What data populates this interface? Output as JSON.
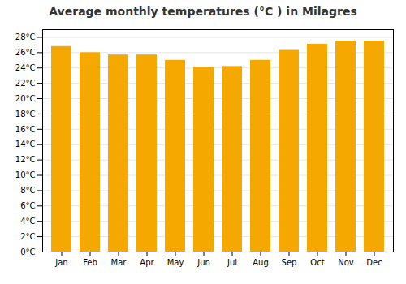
{
  "chart_data": {
    "type": "bar",
    "title": "Average monthly temperatures (°C ) in Milagres",
    "categories": [
      "Jan",
      "Feb",
      "Mar",
      "Apr",
      "May",
      "Jun",
      "Jul",
      "Aug",
      "Sep",
      "Oct",
      "Nov",
      "Dec"
    ],
    "values": [
      26.8,
      26.0,
      25.7,
      25.7,
      25.0,
      24.1,
      24.2,
      25.0,
      26.3,
      27.1,
      27.5,
      27.5
    ],
    "color": "#F5A800",
    "ylim": [
      0,
      29
    ],
    "yticks": [
      {
        "value": 0,
        "label": "0°C"
      },
      {
        "value": 2,
        "label": "2°C"
      },
      {
        "value": 4,
        "label": "4°C"
      },
      {
        "value": 6,
        "label": "6°C"
      },
      {
        "value": 8,
        "label": "8°C"
      },
      {
        "value": 10,
        "label": "10°C"
      },
      {
        "value": 12,
        "label": "12°C"
      },
      {
        "value": 14,
        "label": "14°C"
      },
      {
        "value": 16,
        "label": "16°C"
      },
      {
        "value": 18,
        "label": "18°C"
      },
      {
        "value": 20,
        "label": "20°C"
      },
      {
        "value": 22,
        "label": "22°C"
      },
      {
        "value": 24,
        "label": "24°C"
      },
      {
        "value": 26,
        "label": "26°C"
      },
      {
        "value": 28,
        "label": "28°C"
      }
    ],
    "grid": true
  }
}
